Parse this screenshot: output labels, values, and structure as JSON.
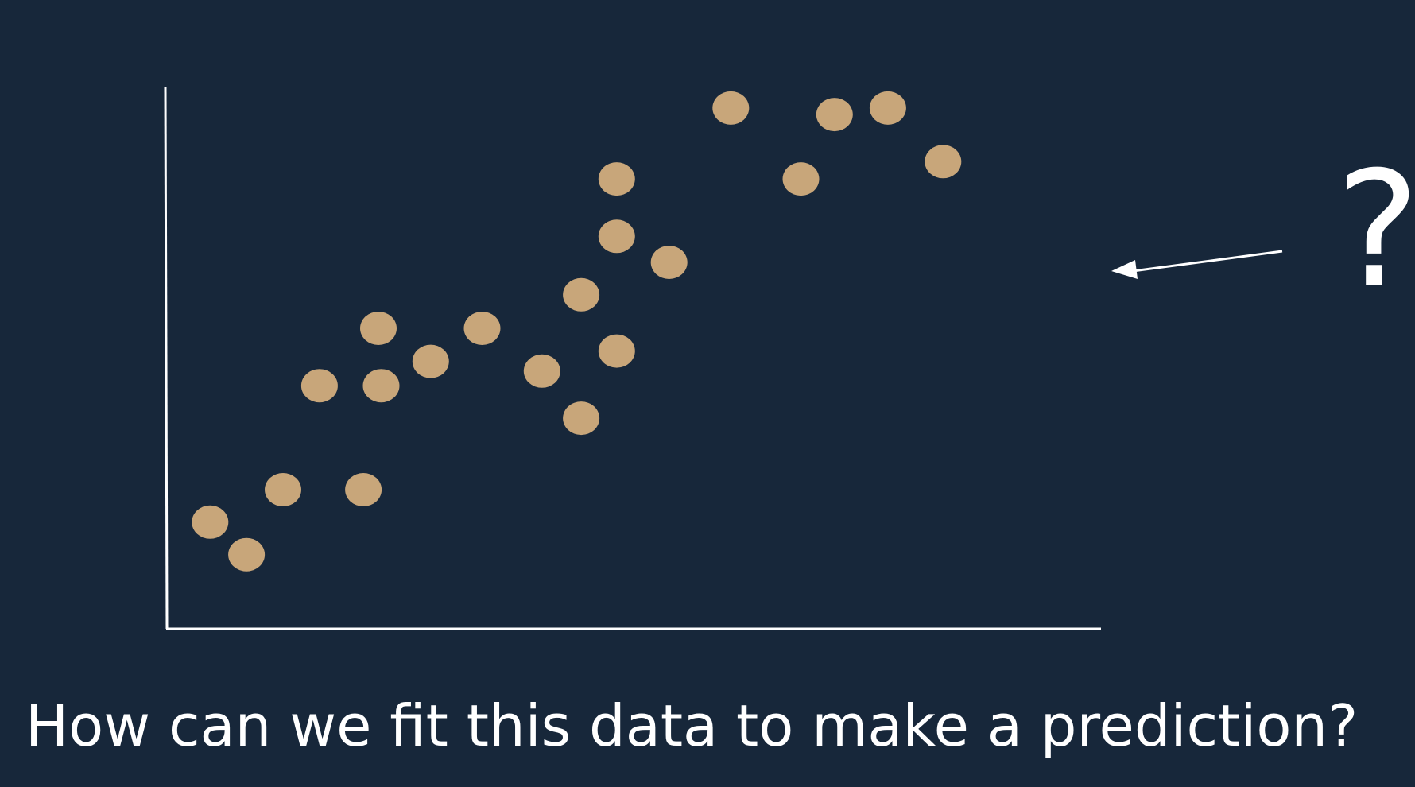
{
  "caption": "How can we fit this data to make a prediction?",
  "question": "?",
  "colors": {
    "background": "#17273a",
    "point": "#c8a67a",
    "axis": "#ffffff",
    "text": "#ffffff"
  },
  "chart_data": {
    "type": "scatter",
    "title": "",
    "xlabel": "",
    "ylabel": "",
    "xlim": [
      0,
      100
    ],
    "ylim": [
      0,
      100
    ],
    "grid": false,
    "legend": "none",
    "points": [
      {
        "x": 4.7,
        "y": 19.7
      },
      {
        "x": 8.6,
        "y": 13.7
      },
      {
        "x": 12.5,
        "y": 25.7
      },
      {
        "x": 16.4,
        "y": 44.9
      },
      {
        "x": 21.1,
        "y": 25.7
      },
      {
        "x": 22.7,
        "y": 55.5
      },
      {
        "x": 23.0,
        "y": 44.9
      },
      {
        "x": 28.3,
        "y": 49.4
      },
      {
        "x": 33.8,
        "y": 55.5
      },
      {
        "x": 40.2,
        "y": 47.6
      },
      {
        "x": 44.4,
        "y": 38.9
      },
      {
        "x": 44.4,
        "y": 61.7
      },
      {
        "x": 48.2,
        "y": 51.3
      },
      {
        "x": 48.2,
        "y": 72.5
      },
      {
        "x": 48.2,
        "y": 83.1
      },
      {
        "x": 53.8,
        "y": 67.7
      },
      {
        "x": 60.4,
        "y": 96.2
      },
      {
        "x": 67.9,
        "y": 83.1
      },
      {
        "x": 71.5,
        "y": 95.0
      },
      {
        "x": 77.2,
        "y": 96.2
      },
      {
        "x": 83.1,
        "y": 86.3
      }
    ]
  }
}
